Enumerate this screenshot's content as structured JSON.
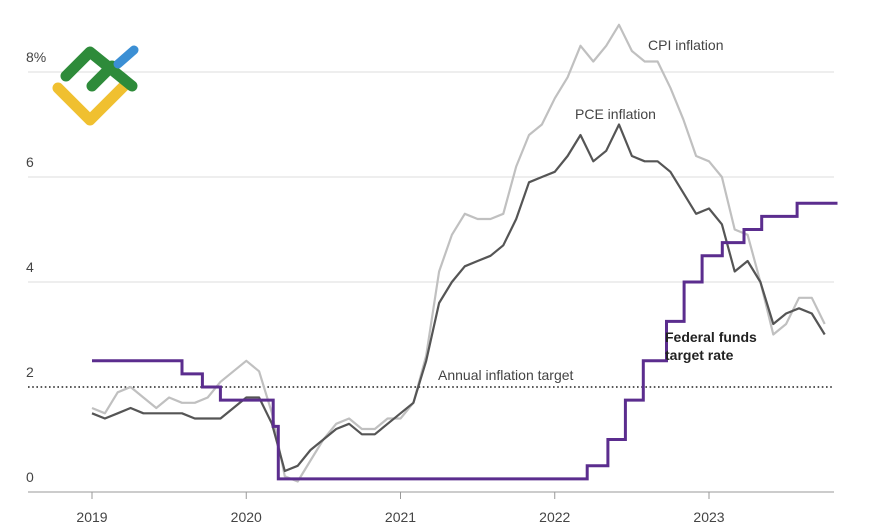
{
  "chart_data": {
    "type": "line",
    "title": "",
    "xlabel": "",
    "ylabel": "",
    "x_tick_labels": [
      "2019",
      "2020",
      "2021",
      "2022",
      "2023"
    ],
    "y_ticks": [
      {
        "value": 0,
        "label": "0"
      },
      {
        "value": 2,
        "label": "2"
      },
      {
        "value": 4,
        "label": "4"
      },
      {
        "value": 6,
        "label": "6"
      },
      {
        "value": 8,
        "label": "8%"
      }
    ],
    "ylim": [
      0,
      9
    ],
    "xlim": [
      "2018-10",
      "2023-12"
    ],
    "grid": "horizontal",
    "target": {
      "label": "Annual inflation target",
      "value": 2
    },
    "labels": {
      "cpi": "CPI inflation",
      "pce": "PCE inflation",
      "fed_line1": "Federal funds",
      "fed_line2": "target rate"
    },
    "colors": {
      "cpi": "#c0c0c0",
      "pce": "#555555",
      "fed": "#5b2d8e",
      "grid": "#dddddd",
      "target": "#222222"
    },
    "series": [
      {
        "key": "cpi",
        "name": "CPI inflation",
        "start": "2019-01",
        "values": [
          1.6,
          1.5,
          1.9,
          2.0,
          1.8,
          1.6,
          1.8,
          1.7,
          1.7,
          1.8,
          2.1,
          2.3,
          2.5,
          2.3,
          1.5,
          0.3,
          0.2,
          0.6,
          1.0,
          1.3,
          1.4,
          1.2,
          1.2,
          1.4,
          1.4,
          1.7,
          2.6,
          4.2,
          4.9,
          5.3,
          5.2,
          5.2,
          5.3,
          6.2,
          6.8,
          7.0,
          7.5,
          7.9,
          8.5,
          8.2,
          8.5,
          8.9,
          8.4,
          8.2,
          8.2,
          7.7,
          7.1,
          6.4,
          6.3,
          6.0,
          5.0,
          4.9,
          4.0,
          3.0,
          3.2,
          3.7,
          3.7,
          3.2
        ]
      },
      {
        "key": "pce",
        "name": "PCE inflation",
        "start": "2019-01",
        "values": [
          1.5,
          1.4,
          1.5,
          1.6,
          1.5,
          1.5,
          1.5,
          1.5,
          1.4,
          1.4,
          1.4,
          1.6,
          1.8,
          1.8,
          1.3,
          0.4,
          0.5,
          0.8,
          1.0,
          1.2,
          1.3,
          1.1,
          1.1,
          1.3,
          1.5,
          1.7,
          2.5,
          3.6,
          4.0,
          4.3,
          4.4,
          4.5,
          4.7,
          5.2,
          5.9,
          6.0,
          6.1,
          6.4,
          6.8,
          6.3,
          6.5,
          7.0,
          6.4,
          6.3,
          6.3,
          6.1,
          5.7,
          5.3,
          5.4,
          5.1,
          4.2,
          4.4,
          4.0,
          3.2,
          3.4,
          3.5,
          3.4,
          3.0
        ]
      },
      {
        "key": "fed",
        "name": "Federal funds target rate",
        "step_points": [
          [
            "2019-01-01",
            2.5
          ],
          [
            "2019-08-01",
            2.25
          ],
          [
            "2019-09-19",
            2.0
          ],
          [
            "2019-10-31",
            1.75
          ],
          [
            "2020-03-04",
            1.25
          ],
          [
            "2020-03-16",
            0.25
          ],
          [
            "2022-03-17",
            0.5
          ],
          [
            "2022-05-05",
            1.0
          ],
          [
            "2022-06-16",
            1.75
          ],
          [
            "2022-07-28",
            2.5
          ],
          [
            "2022-09-22",
            3.25
          ],
          [
            "2022-11-03",
            4.0
          ],
          [
            "2022-12-15",
            4.5
          ],
          [
            "2023-02-02",
            4.75
          ],
          [
            "2023-03-23",
            5.0
          ],
          [
            "2023-05-04",
            5.25
          ],
          [
            "2023-07-27",
            5.5
          ],
          [
            "2023-11-01",
            5.5
          ]
        ]
      }
    ]
  },
  "logo": {
    "colors": {
      "green": "#2e8b3a",
      "blue": "#3b8fd4",
      "yellow": "#f0c030"
    }
  }
}
